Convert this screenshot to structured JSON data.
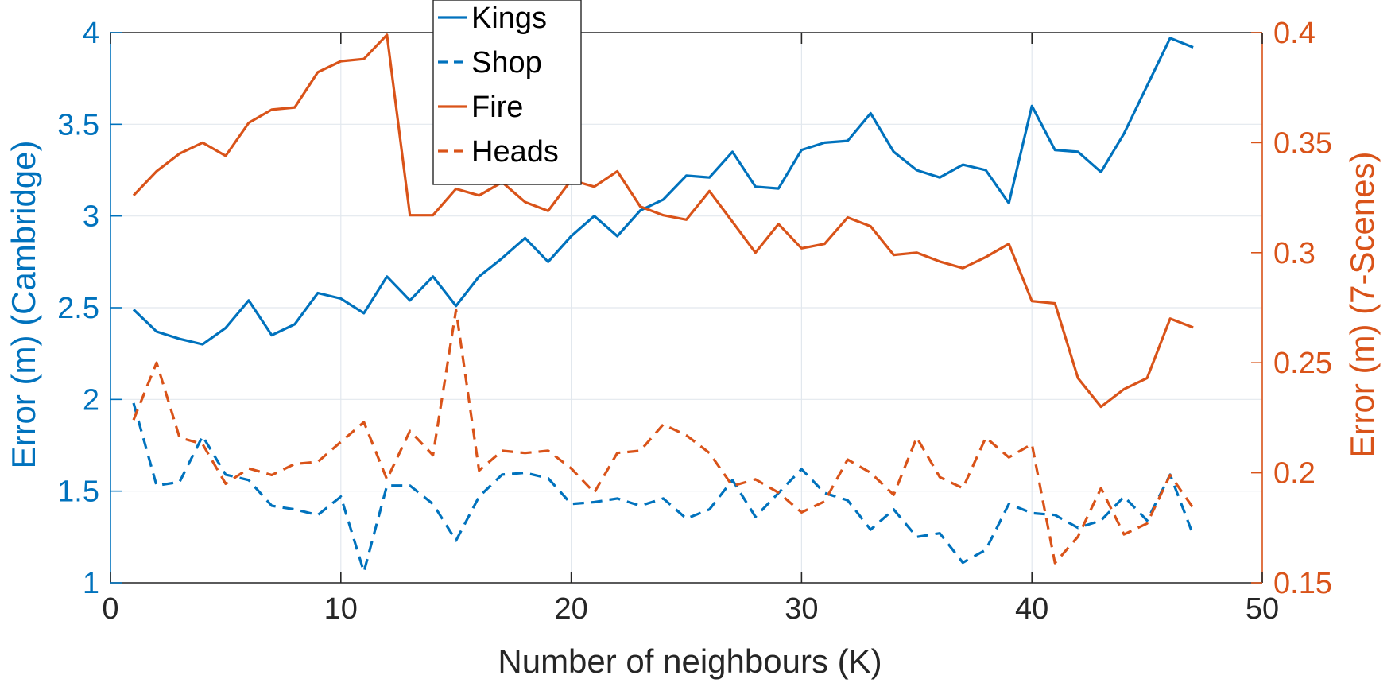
{
  "chart_data": {
    "type": "line",
    "xlabel": "Number of neighbours (K)",
    "ylabel_left": "Error (m) (Cambridge)",
    "ylabel_right": "Error (m) (7-Scenes)",
    "xlim": [
      0,
      50
    ],
    "ylim_left": [
      1,
      4
    ],
    "ylim_right": [
      0.15,
      0.4
    ],
    "xticks": [
      "0",
      "10",
      "20",
      "30",
      "40",
      "50"
    ],
    "xtick_values": [
      0,
      10,
      20,
      30,
      40,
      50
    ],
    "yticks_left": [
      "1",
      "1.5",
      "2",
      "2.5",
      "3",
      "3.5",
      "4"
    ],
    "ytick_values_left": [
      1,
      1.5,
      2,
      2.5,
      3,
      3.5,
      4
    ],
    "yticks_right": [
      "0.15",
      "0.2",
      "0.25",
      "0.3",
      "0.35",
      "0.4"
    ],
    "ytick_values_right": [
      0.15,
      0.2,
      0.25,
      0.3,
      0.35,
      0.4
    ],
    "grid": true,
    "legend_position": "top-center",
    "colors": {
      "left_axis": "#0072BD",
      "right_axis": "#D95319",
      "grid": "#e2e8ee",
      "frame": "#262626"
    },
    "x": [
      1,
      2,
      3,
      4,
      5,
      6,
      7,
      8,
      9,
      10,
      11,
      12,
      13,
      14,
      15,
      16,
      17,
      18,
      19,
      20,
      21,
      22,
      23,
      24,
      25,
      26,
      27,
      28,
      29,
      30,
      31,
      32,
      33,
      34,
      35,
      36,
      37,
      38,
      39,
      40,
      41,
      42,
      43,
      44,
      45,
      46,
      47
    ],
    "series": [
      {
        "name": "Kings",
        "axis": "left",
        "color": "#0072BD",
        "dash": "solid",
        "values": [
          2.49,
          2.37,
          2.33,
          2.3,
          2.39,
          2.54,
          2.35,
          2.41,
          2.58,
          2.55,
          2.47,
          2.67,
          2.54,
          2.67,
          2.51,
          2.67,
          2.77,
          2.88,
          2.75,
          2.89,
          3.0,
          2.89,
          3.03,
          3.09,
          3.22,
          3.21,
          3.35,
          3.16,
          3.15,
          3.36,
          3.4,
          3.41,
          3.56,
          3.35,
          3.25,
          3.21,
          3.28,
          3.25,
          3.07,
          3.6,
          3.36,
          3.35,
          3.24,
          3.45,
          3.71,
          3.97,
          3.92
        ]
      },
      {
        "name": "Shop",
        "axis": "left",
        "color": "#0072BD",
        "dash": "dashed",
        "values": [
          1.98,
          1.53,
          1.55,
          1.8,
          1.59,
          1.56,
          1.42,
          1.4,
          1.37,
          1.47,
          1.06,
          1.53,
          1.53,
          1.43,
          1.23,
          1.47,
          1.59,
          1.6,
          1.57,
          1.43,
          1.44,
          1.46,
          1.42,
          1.46,
          1.35,
          1.4,
          1.56,
          1.36,
          1.49,
          1.62,
          1.49,
          1.45,
          1.29,
          1.4,
          1.25,
          1.27,
          1.11,
          1.18,
          1.43,
          1.38,
          1.37,
          1.3,
          1.34,
          1.47,
          1.34,
          1.59,
          1.26
        ]
      },
      {
        "name": "Fire",
        "axis": "right",
        "color": "#D95319",
        "dash": "solid",
        "values": [
          0.326,
          0.337,
          0.345,
          0.35,
          0.344,
          0.359,
          0.365,
          0.366,
          0.382,
          0.387,
          0.388,
          0.399,
          0.317,
          0.317,
          0.329,
          0.326,
          0.332,
          0.323,
          0.319,
          0.333,
          0.33,
          0.337,
          0.321,
          0.317,
          0.315,
          0.328,
          0.314,
          0.3,
          0.313,
          0.302,
          0.304,
          0.316,
          0.312,
          0.299,
          0.3,
          0.296,
          0.293,
          0.298,
          0.304,
          0.278,
          0.277,
          0.243,
          0.23,
          0.238,
          0.243,
          0.27,
          0.266
        ]
      },
      {
        "name": "Heads",
        "axis": "right",
        "color": "#D95319",
        "dash": "dashed",
        "values": [
          0.224,
          0.25,
          0.216,
          0.213,
          0.195,
          0.202,
          0.199,
          0.204,
          0.205,
          0.214,
          0.223,
          0.197,
          0.219,
          0.208,
          0.274,
          0.201,
          0.21,
          0.209,
          0.21,
          0.202,
          0.191,
          0.209,
          0.21,
          0.222,
          0.217,
          0.209,
          0.194,
          0.197,
          0.191,
          0.182,
          0.187,
          0.206,
          0.2,
          0.19,
          0.216,
          0.198,
          0.193,
          0.216,
          0.207,
          0.213,
          0.159,
          0.171,
          0.193,
          0.172,
          0.177,
          0.199,
          0.184
        ]
      }
    ]
  }
}
